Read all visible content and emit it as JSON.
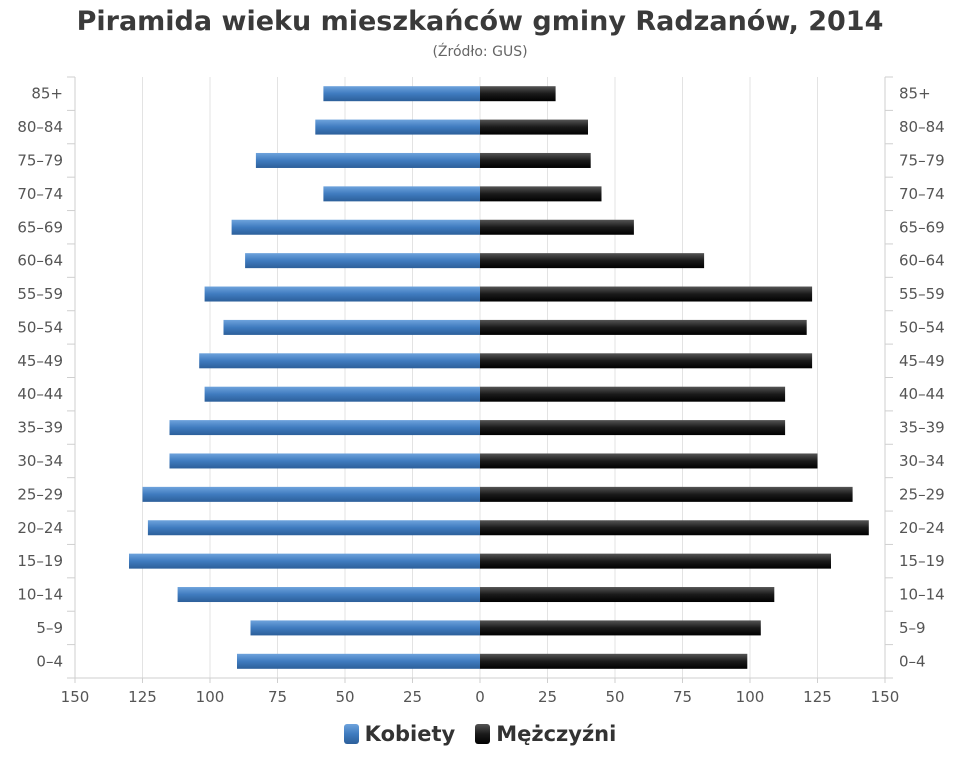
{
  "title": "Piramida wieku mieszkańców gminy Radzanów, 2014",
  "subtitle": "(Źródło: GUS)",
  "chart_data": {
    "type": "bar",
    "orientation": "horizontal",
    "categories": [
      "85+",
      "80–84",
      "75–79",
      "70–74",
      "65–69",
      "60–64",
      "55–59",
      "50–54",
      "45–49",
      "40–44",
      "35–39",
      "30–34",
      "25–29",
      "20–24",
      "15–19",
      "10–14",
      "5–9",
      "0–4"
    ],
    "series": [
      {
        "name": "Kobiety",
        "color": "#3f7bbf",
        "side": "left",
        "values": [
          58,
          61,
          83,
          58,
          92,
          87,
          102,
          95,
          104,
          102,
          115,
          115,
          125,
          123,
          130,
          112,
          85,
          90
        ]
      },
      {
        "name": "Mężczyźni",
        "color": "#1a1a1a",
        "side": "right",
        "values": [
          28,
          40,
          41,
          45,
          57,
          83,
          123,
          121,
          123,
          113,
          113,
          125,
          138,
          144,
          130,
          109,
          104,
          99
        ]
      }
    ],
    "xticks": [
      "150",
      "125",
      "100",
      "75",
      "50",
      "25",
      "0",
      "25",
      "50",
      "75",
      "100",
      "125",
      "150"
    ],
    "xlim": [
      -150,
      150
    ],
    "grid": true,
    "legend": "bottom-center"
  }
}
